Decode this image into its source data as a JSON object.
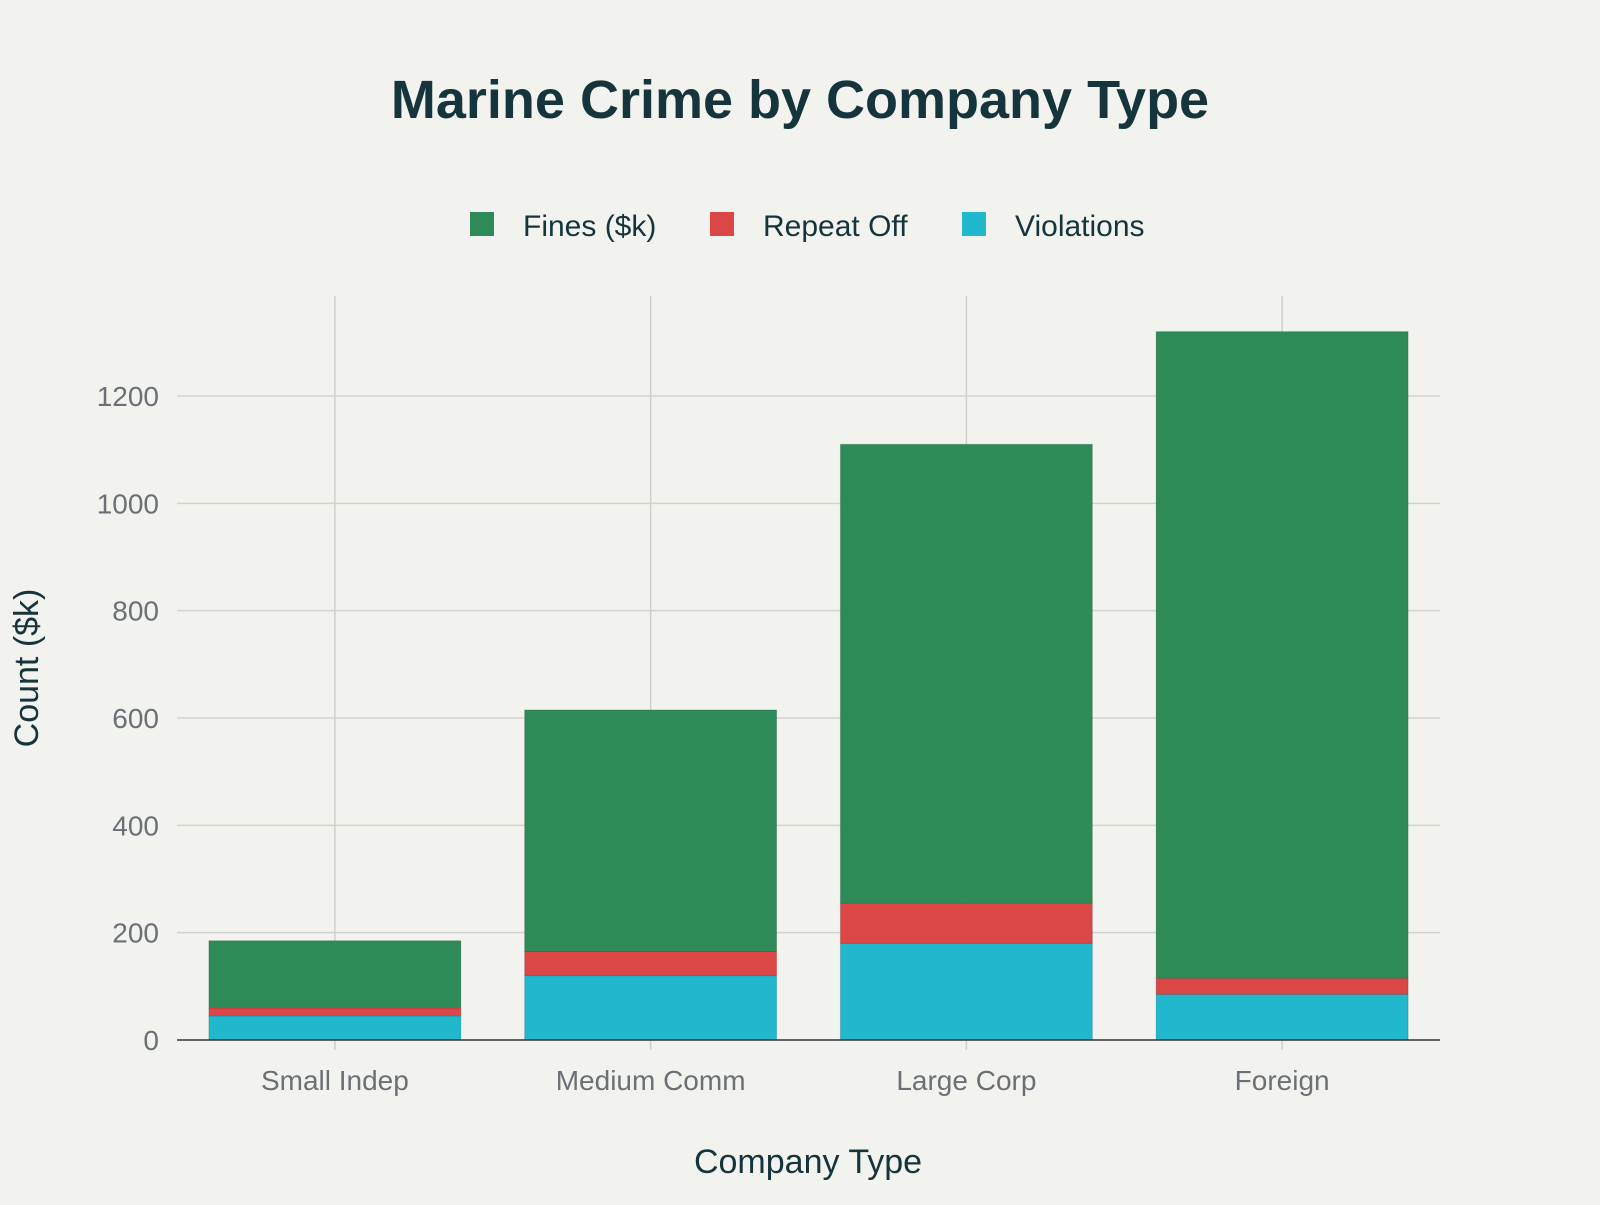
{
  "chart_data": {
    "type": "bar",
    "stacked": true,
    "title": "Marine Crime by Company Type",
    "xlabel": "Company Type",
    "ylabel": "Count ($k)",
    "categories": [
      "Small Indep",
      "Medium Comm",
      "Large Corp",
      "Foreign"
    ],
    "series": [
      {
        "name": "Violations",
        "color": "#21b7cd",
        "values": [
          45,
          120,
          180,
          85
        ]
      },
      {
        "name": "Repeat Off",
        "color": "#db4647",
        "values": [
          15,
          45,
          75,
          30
        ]
      },
      {
        "name": "Fines ($k)",
        "color": "#2e8b58",
        "values": [
          125,
          450,
          855,
          1205
        ]
      }
    ],
    "legend_order": [
      "Fines ($k)",
      "Repeat Off",
      "Violations"
    ],
    "legend_placement": "top-center",
    "ylim": [
      0,
      1390
    ],
    "yticks": [
      0,
      200,
      400,
      600,
      800,
      1000,
      1200
    ],
    "grid": true
  }
}
